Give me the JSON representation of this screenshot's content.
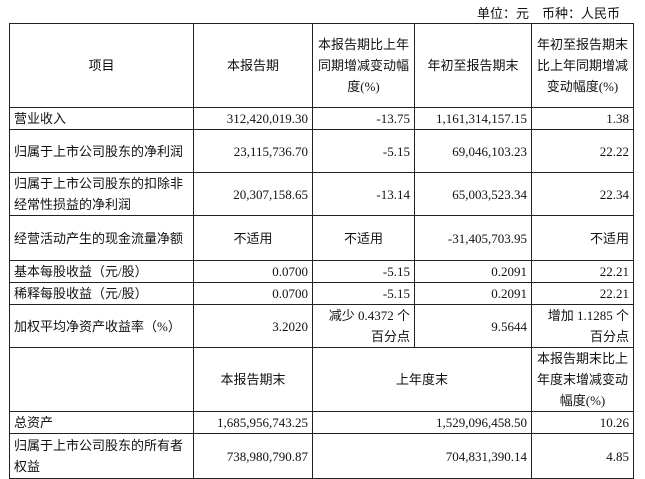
{
  "unit_line": "单位：元　币种：人民币",
  "header": [
    "项目",
    "本报告期",
    "本报告期比上年同期增减变动幅度(%)",
    "年初至报告期末",
    "年初至报告期末比上年同期增减变动幅度(%)"
  ],
  "rows": [
    [
      "营业收入",
      "312,420,019.30",
      "-13.75",
      "1,161,314,157.15",
      "1.38"
    ],
    [
      "归属于上市公司股东的净利润",
      "23,115,736.70",
      "-5.15",
      "69,046,103.23",
      "22.22"
    ],
    [
      "归属于上市公司股东的扣除非经常性损益的净利润",
      "20,307,158.65",
      "-13.14",
      "65,003,523.34",
      "22.34"
    ],
    [
      "经营活动产生的现金流量净额",
      "不适用",
      "不适用",
      "-31,405,703.95",
      "不适用"
    ],
    [
      "基本每股收益（元/股）",
      "0.0700",
      "-5.15",
      "0.2091",
      "22.21"
    ],
    [
      "稀释每股收益（元/股）",
      "0.0700",
      "-5.15",
      "0.2091",
      "22.21"
    ],
    [
      "加权平均净资产收益率（%）",
      "3.2020",
      "减少 0.4372 个百分点",
      "9.5644",
      "增加 1.1285 个百分点"
    ]
  ],
  "header2": [
    "",
    "本报告期末",
    "上年度末",
    "本报告期末比上年度末增减变动幅度(%)"
  ],
  "rows2": [
    [
      "总资产",
      "1,685,956,743.25",
      "1,529,096,458.50",
      "10.26"
    ],
    [
      "归属于上市公司股东的所有者权益",
      "738,980,790.87",
      "704,831,390.14",
      "4.85"
    ]
  ]
}
